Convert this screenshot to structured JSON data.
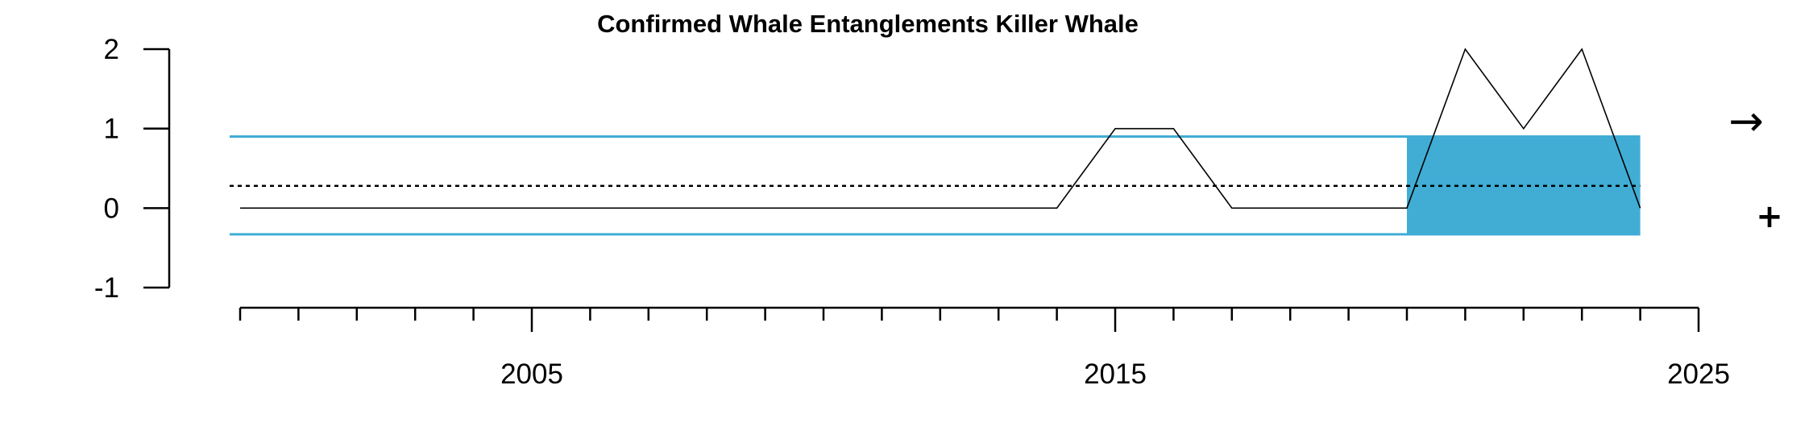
{
  "chart_data": {
    "type": "line",
    "title": "Confirmed Whale Entanglements Killer Whale",
    "xlabel": "",
    "ylabel": "",
    "x": [
      2000,
      2001,
      2002,
      2003,
      2004,
      2005,
      2006,
      2007,
      2008,
      2009,
      2010,
      2011,
      2012,
      2013,
      2014,
      2015,
      2016,
      2017,
      2018,
      2019,
      2020,
      2021,
      2022,
      2023,
      2024
    ],
    "series": [
      {
        "values": [
          0,
          0,
          0,
          0,
          0,
          0,
          0,
          0,
          0,
          0,
          0,
          0,
          0,
          0,
          0,
          1,
          1,
          0,
          0,
          0,
          0,
          2,
          1,
          2,
          0
        ]
      }
    ],
    "mean": 0.28,
    "upper_sd": 0.9,
    "lower_sd": -0.33,
    "highlight_x_range": [
      2020,
      2024
    ],
    "xlim": [
      2000,
      2025
    ],
    "ylim": [
      -1,
      2
    ],
    "x_ticks_labeled": [
      "2005",
      "2015",
      "2025"
    ],
    "y_ticks": [
      "2",
      "1",
      "0",
      "-1"
    ],
    "grid": false,
    "colors": {
      "band": "#41ADD5",
      "line": "#000000",
      "mean": "#000000"
    },
    "side_symbols": {
      "trend": "→",
      "mean_status": "+"
    }
  }
}
